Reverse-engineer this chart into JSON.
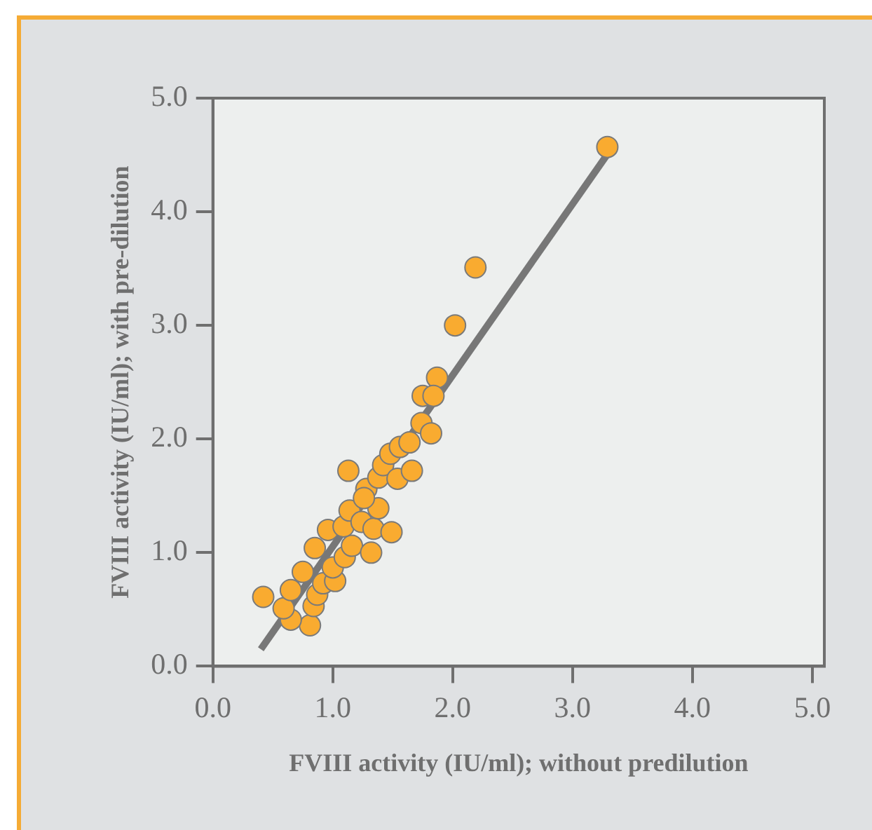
{
  "chart_data": {
    "type": "scatter",
    "xlabel": "FVIII activity (IU/ml); without predilution",
    "ylabel": "FVIII activity (IU/ml); with pre-dilution",
    "xlim": [
      0,
      5.1
    ],
    "ylim": [
      0,
      5
    ],
    "xticks": [
      {
        "value": 0,
        "label": "0.0"
      },
      {
        "value": 1,
        "label": "1.0"
      },
      {
        "value": 2,
        "label": "2.0"
      },
      {
        "value": 3,
        "label": "3.0"
      },
      {
        "value": 4,
        "label": "4.0"
      },
      {
        "value": 5,
        "label": "5.0"
      }
    ],
    "yticks": [
      {
        "value": 0,
        "label": "0.0"
      },
      {
        "value": 1,
        "label": "1.0"
      },
      {
        "value": 2,
        "label": "2.0"
      },
      {
        "value": 3,
        "label": "3.0"
      },
      {
        "value": 4,
        "label": "4.0"
      },
      {
        "value": 5,
        "label": "5.0"
      }
    ],
    "grid": false,
    "legend": false,
    "marker": "circle",
    "series": [
      {
        "color": "#f9ab30",
        "x": [
          0.42,
          0.81,
          0.65,
          0.59,
          0.65,
          0.75,
          0.84,
          0.87,
          0.92,
          1.02,
          1.0,
          0.85,
          0.96,
          1.1,
          1.16,
          1.09,
          1.14,
          1.24,
          1.34,
          1.32,
          1.38,
          1.49,
          1.13,
          1.28,
          1.26,
          1.38,
          1.42,
          1.54,
          1.66,
          1.48,
          1.56,
          1.64,
          1.74,
          1.82,
          1.87,
          1.75,
          1.84,
          2.02,
          2.19,
          3.29
        ],
        "values": [
          0.61,
          0.36,
          0.41,
          0.51,
          0.67,
          0.83,
          0.53,
          0.63,
          0.73,
          0.75,
          0.87,
          1.04,
          1.2,
          0.96,
          1.06,
          1.23,
          1.37,
          1.27,
          1.21,
          1.0,
          1.39,
          1.18,
          1.72,
          1.56,
          1.48,
          1.66,
          1.77,
          1.65,
          1.72,
          1.87,
          1.93,
          1.97,
          2.14,
          2.05,
          2.54,
          2.38,
          2.38,
          3.0,
          3.51,
          4.57
        ]
      },
      {
        "type": "line",
        "color": "#777777",
        "marker": "none",
        "x": [
          0.4,
          3.32
        ],
        "values": [
          0.15,
          4.55
        ]
      }
    ]
  }
}
